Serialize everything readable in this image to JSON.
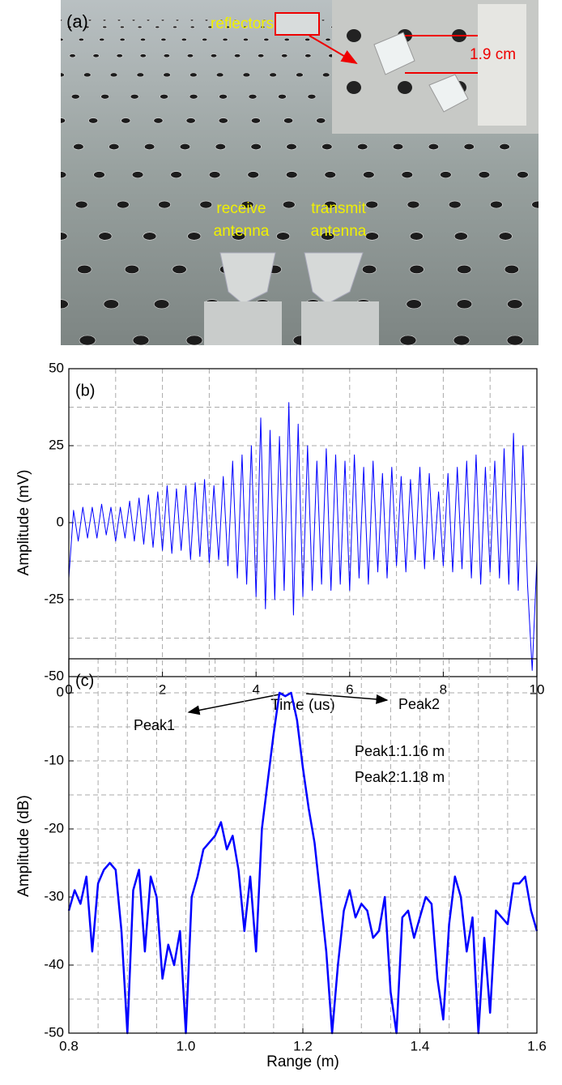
{
  "panel_a": {
    "labels": [
      "(a)",
      "reflectors",
      "1.9 cm",
      "receive",
      "antenna",
      "transmit",
      "antenna"
    ]
  },
  "chart_data": [
    {
      "type": "line",
      "panel_label": "(b)",
      "x_label": "Time (us)",
      "y_label": "Amplitude (mV)",
      "color": "#0000ff",
      "xlim": [
        0,
        10
      ],
      "ylim": [
        -50,
        50
      ],
      "xticks": [
        0,
        2,
        4,
        6,
        8,
        10
      ],
      "yticks": [
        -50,
        -25,
        0,
        25,
        50
      ],
      "grid": true,
      "xgrid": [
        1,
        2,
        3,
        4,
        5,
        6,
        7,
        8,
        9
      ],
      "ygrid": [
        -37.5,
        -25,
        -12.5,
        0,
        12.5,
        25,
        37.5
      ],
      "x": [
        0,
        0.1,
        0.2,
        0.3,
        0.4,
        0.5,
        0.6,
        0.7,
        0.8,
        0.9,
        1,
        1.1,
        1.2,
        1.3,
        1.4,
        1.5,
        1.6,
        1.7,
        1.8,
        1.9,
        2,
        2.1,
        2.2,
        2.3,
        2.4,
        2.5,
        2.6,
        2.7,
        2.8,
        2.9,
        3,
        3.1,
        3.2,
        3.3,
        3.4,
        3.5,
        3.6,
        3.7,
        3.8,
        3.9,
        4,
        4.1,
        4.2,
        4.3,
        4.4,
        4.5,
        4.6,
        4.7,
        4.8,
        4.9,
        5,
        5.1,
        5.2,
        5.3,
        5.4,
        5.5,
        5.6,
        5.7,
        5.8,
        5.9,
        6,
        6.1,
        6.2,
        6.3,
        6.4,
        6.5,
        6.6,
        6.7,
        6.8,
        6.9,
        7,
        7.1,
        7.2,
        7.3,
        7.4,
        7.5,
        7.6,
        7.7,
        7.8,
        7.9,
        8,
        8.1,
        8.2,
        8.3,
        8.4,
        8.5,
        8.6,
        8.7,
        8.8,
        8.9,
        9,
        9.1,
        9.2,
        9.3,
        9.4,
        9.5,
        9.6,
        9.7,
        9.8,
        9.9,
        10
      ],
      "values": [
        -18,
        4,
        -6,
        5,
        -5,
        5,
        -5,
        6,
        -4,
        5,
        -6,
        5,
        -5,
        7,
        -6,
        8,
        -7,
        9,
        -8,
        10,
        -9,
        12,
        -10,
        11,
        -9,
        12,
        -12,
        13,
        -11,
        14,
        -13,
        12,
        -12,
        15,
        -14,
        20,
        -18,
        22,
        -20,
        25,
        -24,
        34,
        -28,
        30,
        -25,
        28,
        -22,
        39,
        -30,
        32,
        -24,
        25,
        -22,
        20,
        -20,
        24,
        -22,
        22,
        -20,
        20,
        -22,
        22,
        -18,
        18,
        -20,
        20,
        -16,
        16,
        -18,
        18,
        -14,
        15,
        -16,
        14,
        -12,
        18,
        -15,
        16,
        -12,
        10,
        -14,
        16,
        -16,
        18,
        -15,
        20,
        -18,
        22,
        -20,
        18,
        -16,
        20,
        -18,
        24,
        -20,
        29,
        -22,
        25,
        -20,
        -48,
        -12
      ]
    },
    {
      "type": "line",
      "panel_label": "(c)",
      "x_label": "Range (m)",
      "y_label": "Amplitude (dB)",
      "color": "#0000ff",
      "xlim": [
        0.8,
        1.6
      ],
      "ylim": [
        -50,
        5
      ],
      "xticks": [
        0.8,
        {
          "value": 1,
          "label": "1.0"
        },
        1.2,
        1.4,
        1.6
      ],
      "yticks": [
        -50,
        -40,
        -30,
        -20,
        -10,
        0
      ],
      "grid": true,
      "xgrid": [
        0.85,
        0.9,
        0.95,
        1,
        1.05,
        1.1,
        1.15,
        1.2,
        1.25,
        1.3,
        1.35,
        1.4,
        1.45,
        1.5,
        1.55
      ],
      "ygrid": [
        -45,
        -40,
        -35,
        -30,
        -25,
        -20,
        -15,
        -10,
        -5,
        0
      ],
      "annotations": [
        "Peak1",
        "Peak2",
        "Peak1:1.16 m",
        "Peak2:1.18 m"
      ],
      "x": [
        0.8,
        0.81,
        0.82,
        0.83,
        0.84,
        0.85,
        0.86,
        0.87,
        0.88,
        0.89,
        0.9,
        0.91,
        0.92,
        0.93,
        0.94,
        0.95,
        0.96,
        0.97,
        0.98,
        0.99,
        1,
        1.01,
        1.02,
        1.03,
        1.04,
        1.05,
        1.06,
        1.07,
        1.08,
        1.09,
        1.1,
        1.11,
        1.12,
        1.13,
        1.14,
        1.15,
        1.16,
        1.17,
        1.18,
        1.19,
        1.2,
        1.21,
        1.22,
        1.23,
        1.24,
        1.25,
        1.26,
        1.27,
        1.28,
        1.29,
        1.3,
        1.31,
        1.32,
        1.33,
        1.34,
        1.35,
        1.36,
        1.37,
        1.38,
        1.39,
        1.4,
        1.41,
        1.42,
        1.43,
        1.44,
        1.45,
        1.46,
        1.47,
        1.48,
        1.49,
        1.5,
        1.51,
        1.52,
        1.53,
        1.54,
        1.55,
        1.56,
        1.57,
        1.58,
        1.59,
        1.6
      ],
      "values": [
        -32,
        -29,
        -31,
        -27,
        -38,
        -28,
        -26,
        -25,
        -26,
        -35,
        -50,
        -29,
        -26,
        -38,
        -27,
        -30,
        -42,
        -37,
        -40,
        -35,
        -50,
        -30,
        -27,
        -23,
        -22,
        -21,
        -19,
        -23,
        -21,
        -26,
        -35,
        -27,
        -38,
        -20,
        -13,
        -6,
        0,
        -0.5,
        0,
        -4,
        -11,
        -17,
        -22,
        -30,
        -38,
        -50,
        -40,
        -32,
        -29,
        -33,
        -31,
        -32,
        -36,
        -35,
        -30,
        -44,
        -50,
        -33,
        -32,
        -36,
        -33,
        -30,
        -31,
        -42,
        -48,
        -34,
        -27,
        -30,
        -38,
        -33,
        -50,
        -36,
        -47,
        -32,
        -33,
        -34,
        -28,
        -28,
        -27,
        -32,
        -35
      ]
    }
  ]
}
